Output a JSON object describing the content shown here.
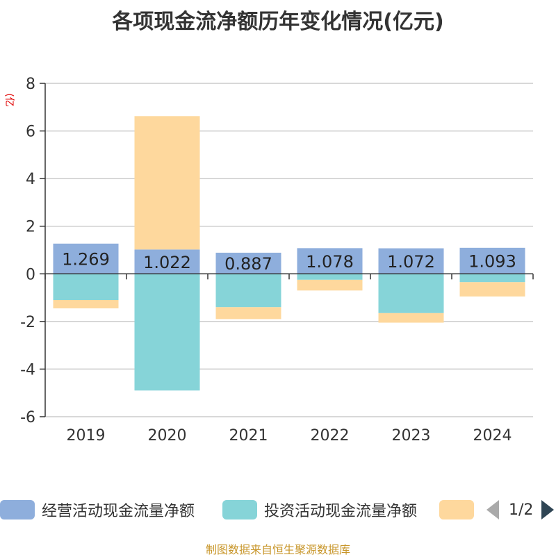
{
  "title": "各项现金流净额历年变化情况(亿元)",
  "source": "制图数据来自恒生聚源数据库",
  "colors": {
    "operating": "#8eaedc",
    "investing": "#86d4d8",
    "financing": "#fed89d"
  },
  "legend": {
    "items": [
      {
        "label": "经营活动现金流量净额",
        "color": "#8eaedc"
      },
      {
        "label": "投资活动现金流量净额",
        "color": "#86d4d8"
      },
      {
        "label": "",
        "color": "#fed89d"
      }
    ],
    "page": "1/2"
  },
  "chart_data": {
    "type": "bar",
    "stacked": true,
    "ylabel": "(亿元)",
    "ylim": [
      -6,
      8
    ],
    "yticks": [
      8,
      6,
      4,
      2,
      0,
      -2,
      -4,
      -6
    ],
    "categories": [
      "2019",
      "2020",
      "2021",
      "2022",
      "2023",
      "2024"
    ],
    "series": [
      {
        "name": "经营活动现金流量净额",
        "values": [
          1.269,
          1.022,
          0.887,
          1.078,
          1.072,
          1.093
        ],
        "labels": [
          "1.269",
          "1.022",
          "0.887",
          "1.078",
          "1.072",
          "1.093"
        ]
      },
      {
        "name": "投资活动现金流量净额",
        "values": [
          -1.1,
          -4.9,
          -1.4,
          -0.25,
          -1.65,
          -0.35
        ]
      },
      {
        "values": [
          -0.35,
          5.6,
          -0.5,
          -0.45,
          -0.4,
          -0.6
        ]
      }
    ],
    "grid": true,
    "legend_position": "bottom"
  }
}
